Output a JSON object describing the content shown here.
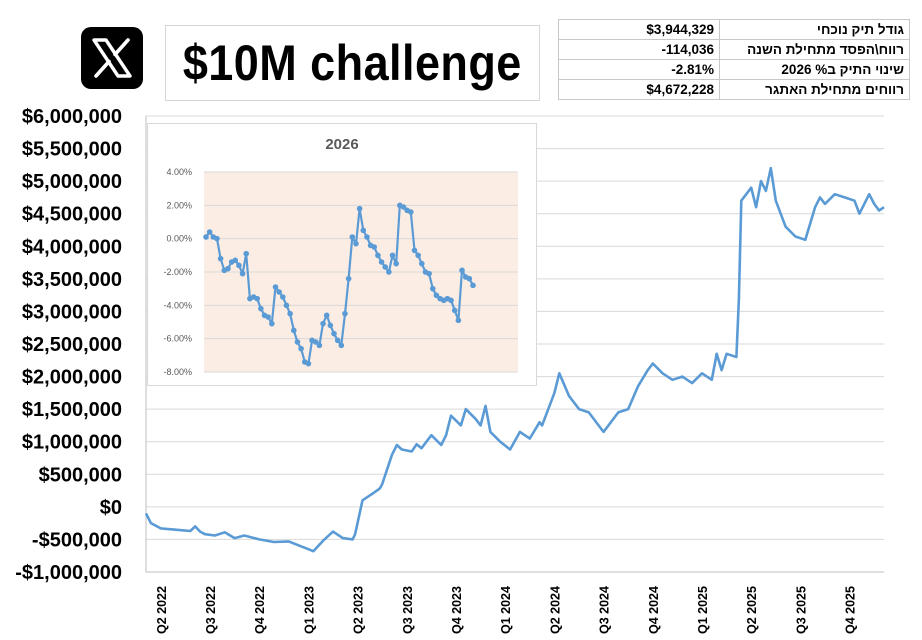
{
  "header": {
    "logo_icon": "x-logo-icon",
    "title": "$10M challenge"
  },
  "stats": [
    {
      "value": "$3,944,329",
      "label": "גודל תיק נוכחי"
    },
    {
      "value": "-114,036",
      "label": "רווח\\הפסד מתחילת השנה"
    },
    {
      "value": "-2.81%",
      "label": "שינוי התיק ב% 2026"
    },
    {
      "value": "$4,672,228",
      "label": "רווחים מתחילת האתגר"
    }
  ],
  "chart_data": [
    {
      "type": "line",
      "name": "main",
      "title": "",
      "xlabel": "",
      "ylabel": "",
      "color": "#5b9bd5",
      "ylim": [
        -1000000,
        6000000
      ],
      "y_ticks": [
        6000000,
        5500000,
        5000000,
        4500000,
        4000000,
        3500000,
        3000000,
        2500000,
        2000000,
        1500000,
        1000000,
        500000,
        0,
        -500000,
        -1000000
      ],
      "y_tick_labels": [
        "$6,000,000",
        "$5,500,000",
        "$5,000,000",
        "$4,500,000",
        "$4,000,000",
        "$3,500,000",
        "$3,000,000",
        "$2,500,000",
        "$2,000,000",
        "$1,500,000",
        "$1,000,000",
        "$500,000",
        "$0",
        "-$500,000",
        "-$1,000,000"
      ],
      "xlim": [
        0,
        15
      ],
      "x_ticks": [
        0.3,
        1.3,
        2.3,
        3.3,
        4.3,
        5.3,
        6.3,
        7.3,
        8.3,
        9.3,
        10.3,
        11.3,
        12.3,
        13.3,
        14.3
      ],
      "x_tick_labels": [
        "Q2 2022",
        "Q3 2022",
        "Q4 2022",
        "Q1 2023",
        "Q2 2023",
        "Q3 2023",
        "Q4 2023",
        "Q1 2024",
        "Q2 2024",
        "Q3 2024",
        "Q4 2024",
        "Q1 2025",
        "Q2 2025",
        "Q3 2025",
        "Q4 2025"
      ],
      "grid": true,
      "x": [
        0,
        0.1,
        0.3,
        0.6,
        0.9,
        1.0,
        1.1,
        1.2,
        1.4,
        1.6,
        1.8,
        2.0,
        2.3,
        2.6,
        2.9,
        3.1,
        3.3,
        3.4,
        3.6,
        3.8,
        4.0,
        4.2,
        4.25,
        4.4,
        4.6,
        4.75,
        4.8,
        5.0,
        5.1,
        5.2,
        5.4,
        5.5,
        5.6,
        5.8,
        6.0,
        6.1,
        6.2,
        6.4,
        6.5,
        6.7,
        6.8,
        6.9,
        7.0,
        7.2,
        7.4,
        7.6,
        7.8,
        8.0,
        8.05,
        8.3,
        8.4,
        8.6,
        8.8,
        9.0,
        9.2,
        9.3,
        9.5,
        9.6,
        9.8,
        10.0,
        10.2,
        10.3,
        10.5,
        10.7,
        10.9,
        11.1,
        11.3,
        11.5,
        11.6,
        11.7,
        11.8,
        12.0,
        12.05,
        12.1,
        12.3,
        12.4,
        12.5,
        12.6,
        12.7,
        12.8,
        13.0,
        13.2,
        13.4,
        13.6,
        13.7,
        13.8,
        14.0,
        14.2,
        14.4,
        14.5,
        14.7,
        14.8,
        14.9,
        15.0
      ],
      "values": [
        -100000,
        -250000,
        -330000,
        -350000,
        -370000,
        -300000,
        -380000,
        -420000,
        -440000,
        -390000,
        -480000,
        -440000,
        -500000,
        -540000,
        -530000,
        -590000,
        -650000,
        -680000,
        -520000,
        -380000,
        -480000,
        -500000,
        -420000,
        100000,
        200000,
        280000,
        350000,
        800000,
        950000,
        880000,
        850000,
        960000,
        900000,
        1100000,
        950000,
        1100000,
        1400000,
        1250000,
        1500000,
        1350000,
        1250000,
        1550000,
        1150000,
        1000000,
        880000,
        1150000,
        1050000,
        1300000,
        1250000,
        1750000,
        2050000,
        1700000,
        1500000,
        1450000,
        1250000,
        1150000,
        1350000,
        1450000,
        1500000,
        1850000,
        2100000,
        2200000,
        2050000,
        1950000,
        2000000,
        1900000,
        2050000,
        1950000,
        2350000,
        2100000,
        2350000,
        2300000,
        3200000,
        4700000,
        4900000,
        4600000,
        5000000,
        4850000,
        5200000,
        4700000,
        4300000,
        4150000,
        4100000,
        4600000,
        4750000,
        4650000,
        4800000,
        4750000,
        4700000,
        4500000,
        4800000,
        4650000,
        4550000,
        4600000
      ]
    },
    {
      "type": "line",
      "name": "inset",
      "title": "2026",
      "xlabel": "",
      "ylabel": "",
      "color": "#5b9bd5",
      "background": "#fcede4",
      "ylim": [
        -8,
        4
      ],
      "y_ticks": [
        4,
        2,
        0,
        -2,
        -4,
        -6,
        -8
      ],
      "y_tick_labels": [
        "4.00%",
        "2.00%",
        "0.00%",
        "-2.00%",
        "-4.00%",
        "-6.00%",
        "-8.00%"
      ],
      "grid": true,
      "markers": true,
      "values": [
        0.1,
        0.4,
        0.1,
        0.0,
        -1.2,
        -1.9,
        -1.8,
        -1.4,
        -1.3,
        -1.6,
        -2.1,
        -0.9,
        -3.6,
        -3.5,
        -3.6,
        -4.2,
        -4.6,
        -4.7,
        -5.1,
        -2.9,
        -3.2,
        -3.5,
        -4.0,
        -4.5,
        -5.5,
        -6.2,
        -6.6,
        -7.4,
        -7.5,
        -6.1,
        -6.2,
        -6.4,
        -5.1,
        -4.6,
        -5.2,
        -5.7,
        -6.1,
        -6.4,
        -4.5,
        -2.4,
        0.1,
        -0.3,
        1.8,
        0.5,
        0.1,
        -0.4,
        -0.5,
        -1.0,
        -1.4,
        -1.7,
        -2.0,
        -1.0,
        -1.5,
        2.0,
        1.9,
        1.7,
        1.6,
        -0.7,
        -1.0,
        -1.5,
        -2.0,
        -2.1,
        -3.0,
        -3.4,
        -3.6,
        -3.7,
        -3.6,
        -3.7,
        -4.3,
        -4.9,
        -1.9,
        -2.3,
        -2.4,
        -2.8
      ]
    }
  ]
}
